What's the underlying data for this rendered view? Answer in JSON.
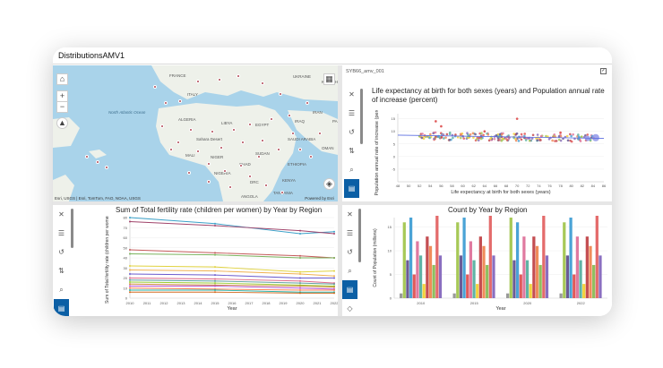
{
  "window": {
    "title": "DistributionsAMV1"
  },
  "map": {
    "attribution_left": "Esri, USGS | Esri, TomTom, FAO, NOAA, USGS",
    "attribution_right": "Powered by Esri",
    "labels": [
      "FRANCE",
      "ITALY",
      "UKRAINE",
      "KAZAKHSTAN",
      "North Atlantic Ocean",
      "ALGERIA",
      "LIBYA",
      "EGYPT",
      "SAUDI ARABIA",
      "IRAN",
      "Sahara Desert",
      "NIGER",
      "SUDAN",
      "NIGERIA",
      "CHAD",
      "ETHIOPIA",
      "DRC",
      "KENYA",
      "TANZANIA",
      "ANGOLA",
      "IRAQ",
      "PAKISTAN",
      "MALI",
      "OMAN"
    ],
    "points_color": "#b04552"
  },
  "scatter_panel": {
    "header": "SYB66_amv_001",
    "title": "Life expectancy at birth for both sexes (years) and Population annual rate of increase (percent)",
    "xlabel": "Life expectancy at birth for both sexes (years)",
    "ylabel": "Population annual rate of increase (percent)",
    "chart_data": {
      "type": "scatter",
      "title": "Life expectancy at birth for both sexes (years) and Population annual rate of increase (percent)",
      "xlabel": "Life expectancy at birth for both sexes (years)",
      "ylabel": "Population annual rate of increase (percent)",
      "x_ticks": [
        "48",
        "50",
        "52",
        "54",
        "56",
        "58",
        "60",
        "62",
        "64",
        "66",
        "68",
        "70",
        "72",
        "74",
        "76",
        "78",
        "80",
        "82",
        "84",
        "86"
      ],
      "y_ticks": [
        "-5",
        "0",
        "5",
        "10",
        "15"
      ],
      "xlim": [
        48,
        86
      ],
      "ylim": [
        -10,
        17
      ],
      "trend": {
        "x": [
          48,
          86
        ],
        "y": [
          8.5,
          7.2
        ]
      }
    }
  },
  "line_panel": {
    "title": "Sum of Total fertility rate (children per women) by Year by Region",
    "ylabel": "Sum of Total fertility rate (children per women)",
    "xlabel": "Year",
    "chart_data": {
      "type": "line",
      "title": "Sum of Total fertility rate (children per women) by Year by Region",
      "xlabel": "Year",
      "ylabel": "Sum of Total fertility rate (children per women)",
      "x": [
        "2010",
        "2011",
        "2012",
        "2013",
        "2014",
        "2015",
        "2016",
        "2017",
        "2018",
        "2019",
        "2020",
        "2021",
        "2022"
      ],
      "ylim": [
        0,
        80
      ],
      "y_ticks": [
        "0",
        "10",
        "20",
        "30",
        "40",
        "50",
        "60",
        "70",
        "80"
      ],
      "series": [
        {
          "color": "#3aa0c8",
          "x": [
            2010,
            2015,
            2020,
            2022
          ],
          "values": [
            80,
            74,
            64,
            66
          ]
        },
        {
          "color": "#a0436a",
          "x": [
            2010,
            2015,
            2020,
            2022
          ],
          "values": [
            76,
            72,
            67,
            64
          ]
        },
        {
          "color": "#c45a5a",
          "x": [
            2010,
            2015,
            2020,
            2022
          ],
          "values": [
            48,
            45,
            42,
            40
          ]
        },
        {
          "color": "#7ab35c",
          "x": [
            2010,
            2015,
            2020,
            2022
          ],
          "values": [
            44,
            43,
            40,
            40
          ]
        },
        {
          "color": "#e0d23e",
          "x": [
            2010,
            2015,
            2020,
            2022
          ],
          "values": [
            32,
            31,
            26,
            27
          ]
        },
        {
          "color": "#f0b050",
          "x": [
            2010,
            2015,
            2020,
            2022
          ],
          "values": [
            28,
            27,
            24,
            22
          ]
        },
        {
          "color": "#6a5acd",
          "x": [
            2010,
            2015,
            2020,
            2022
          ],
          "values": [
            24,
            23,
            20,
            20
          ]
        },
        {
          "color": "#e06a8a",
          "x": [
            2010,
            2015,
            2020,
            2022
          ],
          "values": [
            20,
            19,
            17,
            15
          ]
        },
        {
          "color": "#5f9ea0",
          "x": [
            2010,
            2015,
            2020,
            2022
          ],
          "values": [
            18,
            17,
            15,
            14
          ]
        },
        {
          "color": "#9acd32",
          "x": [
            2010,
            2015,
            2020,
            2022
          ],
          "values": [
            16,
            15,
            13,
            12
          ]
        },
        {
          "color": "#cd853f",
          "x": [
            2010,
            2015,
            2020,
            2022
          ],
          "values": [
            14,
            13,
            12,
            11
          ]
        },
        {
          "color": "#ba55d3",
          "x": [
            2010,
            2015,
            2020,
            2022
          ],
          "values": [
            12,
            12,
            10,
            9
          ]
        },
        {
          "color": "#ff7f50",
          "x": [
            2010,
            2015,
            2020,
            2022
          ],
          "values": [
            10,
            9,
            8,
            8
          ]
        },
        {
          "color": "#20b2aa",
          "x": [
            2010,
            2015,
            2020,
            2022
          ],
          "values": [
            8,
            8,
            6,
            6
          ]
        },
        {
          "color": "#d2691e",
          "x": [
            2010,
            2015,
            2020,
            2022
          ],
          "values": [
            6,
            6,
            5,
            5
          ]
        }
      ]
    }
  },
  "bar_panel": {
    "title": "Count by Year by Region",
    "ylabel": "Count of Population (millions)",
    "xlabel": "Year",
    "chart_data": {
      "type": "bar",
      "title": "Count by Year by Region",
      "xlabel": "Year",
      "ylabel": "Count of Population (millions)",
      "categories": [
        "2010",
        "2015",
        "2020",
        "2022"
      ],
      "ylim": [
        0,
        17
      ],
      "y_ticks": [
        "0",
        "5",
        "10",
        "15"
      ],
      "colors": [
        "#9a9a9a",
        "#a7c957",
        "#6b5b95",
        "#4aa3d6",
        "#e05a5a",
        "#e07aa0",
        "#5fb3a5",
        "#f2d23d",
        "#c44e52",
        "#f08c5a",
        "#8fbf5f",
        "#e46b6b",
        "#8a6fc0"
      ],
      "groups": [
        [
          1,
          16,
          8,
          17,
          5,
          12,
          9,
          3,
          13,
          11,
          7,
          18,
          9
        ],
        [
          1,
          16,
          9,
          17,
          5,
          12,
          8,
          3,
          13,
          11,
          7,
          18,
          9
        ],
        [
          1,
          17,
          8,
          16,
          5,
          13,
          8,
          3,
          13,
          11,
          7,
          18,
          9
        ],
        [
          1,
          16,
          9,
          17,
          5,
          13,
          8,
          3,
          13,
          11,
          7,
          18,
          9
        ]
      ]
    }
  }
}
